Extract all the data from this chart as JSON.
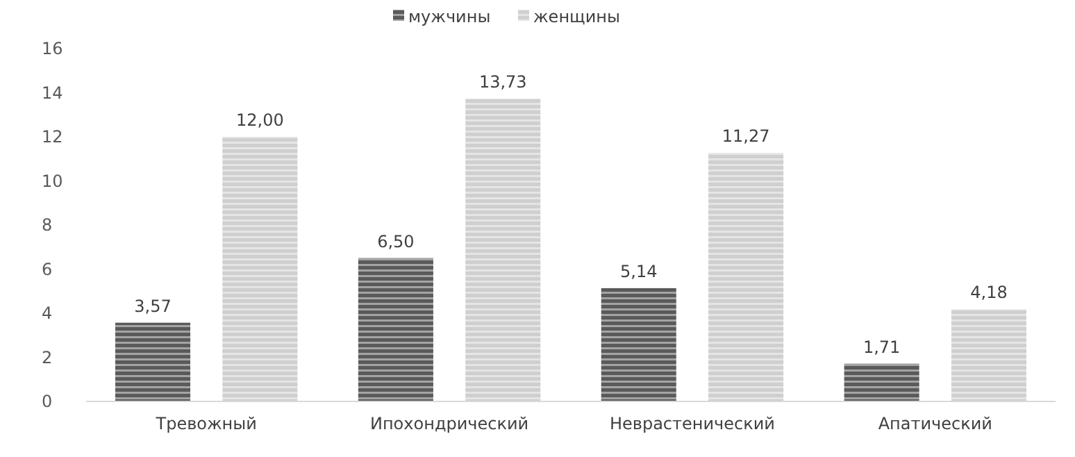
{
  "chart_data": {
    "type": "bar",
    "categories": [
      "Тревожный",
      "Ипохондрический",
      "Неврастенический",
      "Апатический"
    ],
    "series": [
      {
        "name": "мужчины",
        "color": "#5a5a5a",
        "values": [
          3.57,
          6.5,
          5.14,
          1.71
        ],
        "value_labels": [
          "3,57",
          "6,50",
          "5,14",
          "1,71"
        ]
      },
      {
        "name": "женщины",
        "color": "#cfcfcf",
        "values": [
          12.0,
          13.73,
          11.27,
          4.18
        ],
        "value_labels": [
          "12,00",
          "13,73",
          "11,27",
          "4,18"
        ]
      }
    ],
    "ylim": [
      0,
      16
    ],
    "yticks": [
      0,
      2,
      4,
      6,
      8,
      10,
      12,
      14,
      16
    ],
    "grid": false,
    "legend": "top"
  }
}
